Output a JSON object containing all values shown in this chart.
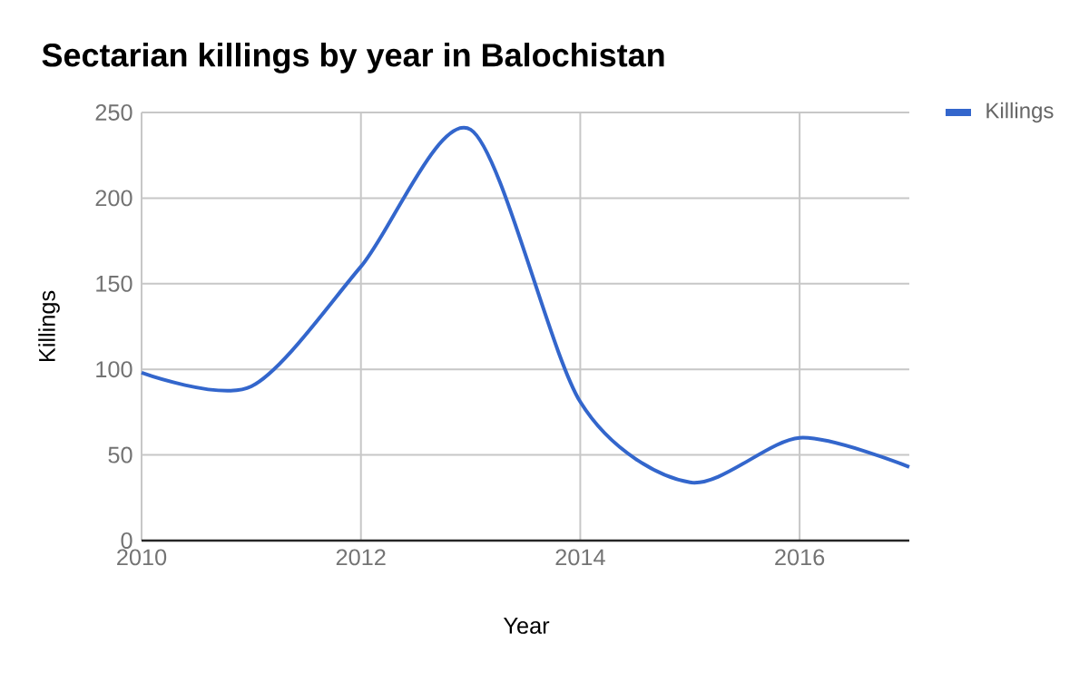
{
  "chart_data": {
    "type": "line",
    "title": "Sectarian killings by year in Balochistan",
    "xlabel": "Year",
    "ylabel": "Killings",
    "x": [
      2010,
      2011,
      2012,
      2013,
      2014,
      2015,
      2016,
      2017
    ],
    "series": [
      {
        "name": "Killings",
        "color": "#3366cc",
        "values": [
          98,
          90,
          160,
          240,
          81,
          34,
          60,
          43
        ]
      }
    ],
    "xlim": [
      2010,
      2017
    ],
    "xticks": [
      2010,
      2012,
      2014,
      2016
    ],
    "ylim": [
      0,
      250
    ],
    "yticks": [
      0,
      50,
      100,
      150,
      200,
      250
    ],
    "grid": true,
    "legend": "right",
    "marker": "none",
    "line_style": "solid"
  }
}
